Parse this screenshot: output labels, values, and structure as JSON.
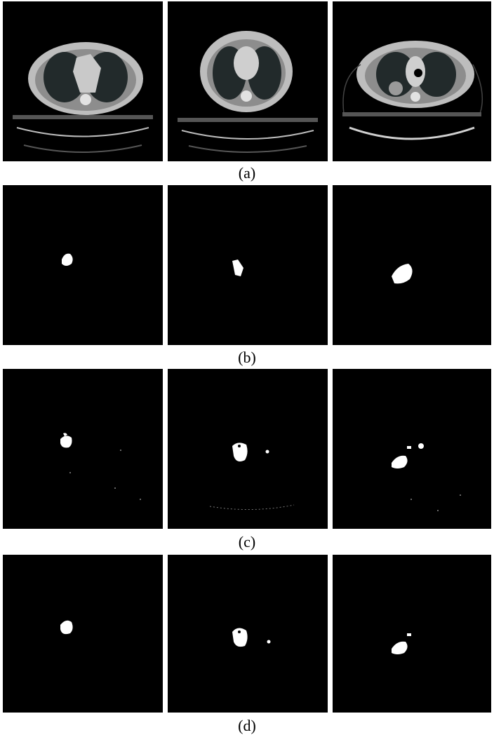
{
  "captions": {
    "a": "(a)",
    "b": "(b)",
    "c": "(c)",
    "d": "(d)"
  },
  "colors": {
    "background": "#000000",
    "mask": "#ffffff",
    "tissue": "#c8c8c8",
    "lung": "#1e2526"
  }
}
